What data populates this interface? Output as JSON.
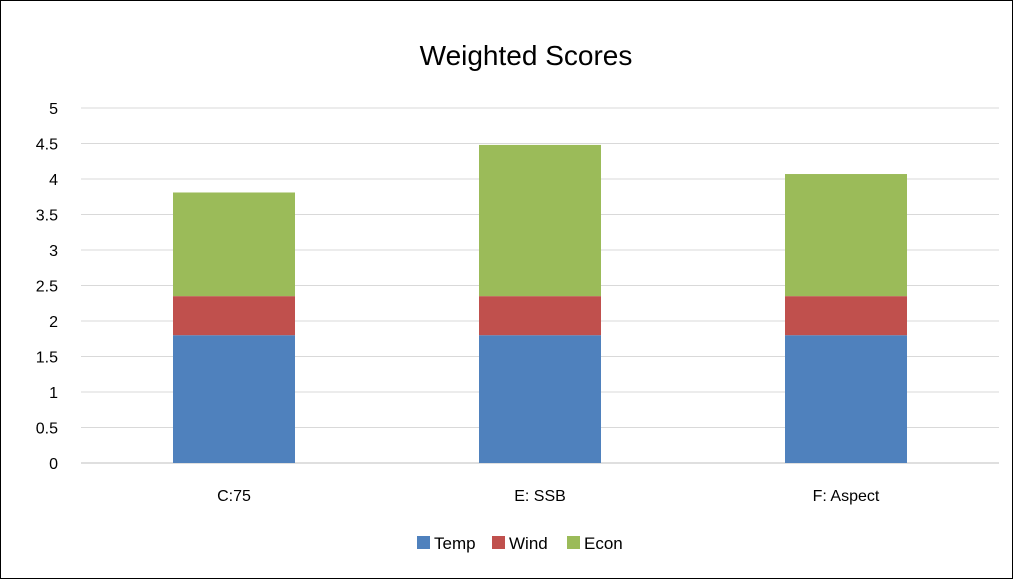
{
  "chart_data": {
    "type": "bar",
    "stacked": true,
    "title": "Weighted Scores",
    "categories": [
      "C:75",
      "E: SSB",
      "F: Aspect"
    ],
    "series": [
      {
        "name": "Temp",
        "color": "#4F81BD",
        "values": [
          1.8,
          1.8,
          1.8
        ]
      },
      {
        "name": "Wind",
        "color": "#C0504D",
        "values": [
          0.55,
          0.55,
          0.55
        ]
      },
      {
        "name": "Econ",
        "color": "#9BBB59",
        "values": [
          1.46,
          2.13,
          1.72
        ]
      }
    ],
    "ylim": [
      0,
      5
    ],
    "yticks": [
      "0",
      "0.5",
      "1",
      "1.5",
      "2",
      "2.5",
      "3",
      "3.5",
      "4",
      "4.5",
      "5"
    ],
    "grid": true,
    "legend_position": "bottom"
  }
}
